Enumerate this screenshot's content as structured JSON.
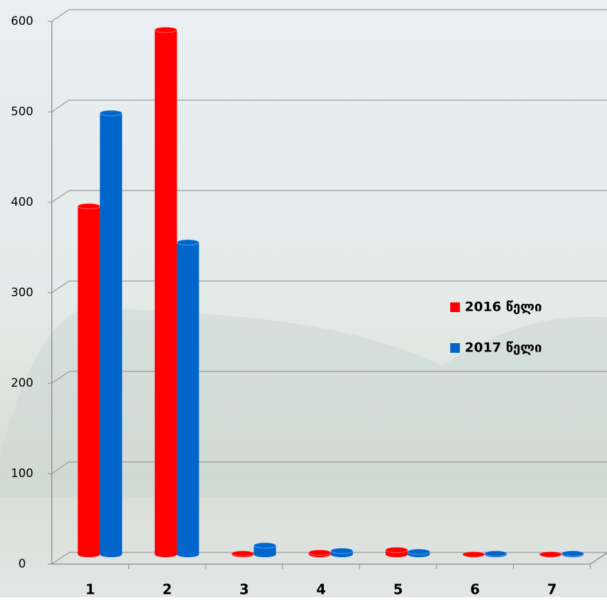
{
  "chart_data": {
    "type": "bar3d",
    "categories": [
      "1",
      "2",
      "3",
      "4",
      "5",
      "6",
      "7"
    ],
    "series": [
      {
        "name": "2016 წელი",
        "color": "#ff0000",
        "values": [
          385,
          580,
          1,
          2,
          5,
          0,
          0
        ]
      },
      {
        "name": "2017 წელი",
        "color": "#0066cc",
        "values": [
          488,
          345,
          10,
          4,
          3,
          1,
          1
        ]
      }
    ],
    "ylim": [
      0,
      600
    ],
    "yticks": [
      0,
      100,
      200,
      300,
      400,
      500,
      600
    ],
    "grid": true,
    "legend": "right"
  }
}
